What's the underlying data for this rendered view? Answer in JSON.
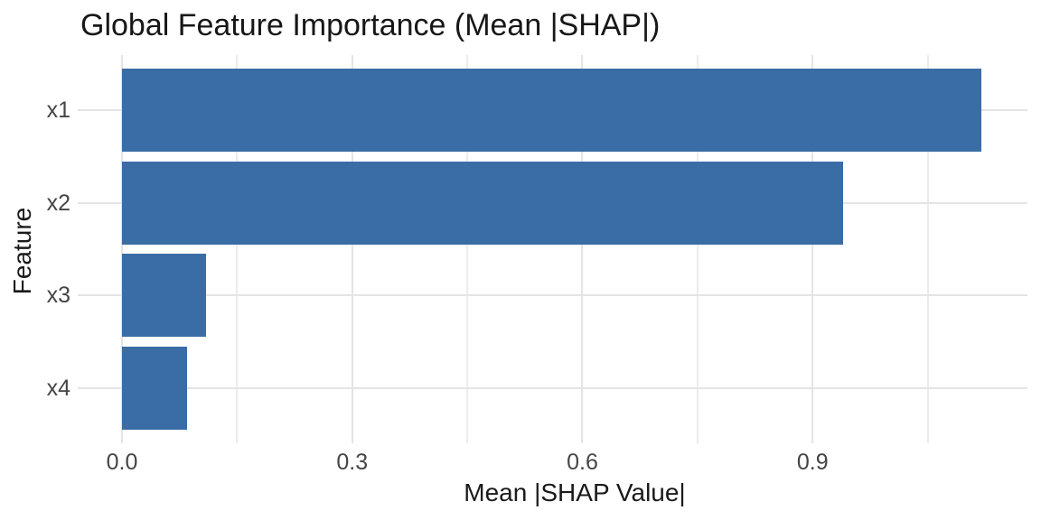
{
  "chart_data": {
    "type": "bar",
    "orientation": "horizontal",
    "title": "Global Feature Importance (Mean |SHAP|)",
    "xlabel": "Mean |SHAP Value|",
    "ylabel": "Feature",
    "categories": [
      "x1",
      "x2",
      "x3",
      "x4"
    ],
    "values": [
      1.12,
      0.94,
      0.11,
      0.085
    ],
    "xlim": [
      0,
      1.18
    ],
    "x_major_ticks": [
      0.0,
      0.3,
      0.6,
      0.9
    ],
    "x_major_tick_labels": [
      "0.0",
      "0.3",
      "0.6",
      "0.9"
    ],
    "x_minor_ticks": [
      0.15,
      0.45,
      0.75,
      1.05
    ],
    "grid": true,
    "legend": false,
    "colors": {
      "bar_fill": "#3A6DA5",
      "major_gridline": "#E4E4E4",
      "minor_gridline": "#ECECEC",
      "axis_text": "#454545",
      "title_text": "#171717",
      "background": "#FFFFFF"
    }
  }
}
